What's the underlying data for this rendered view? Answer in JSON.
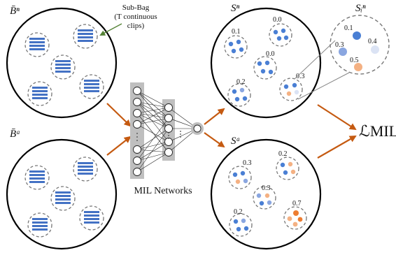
{
  "labels": {
    "bag_normal": "B̄ⁿ",
    "bag_anomaly": "B̄ᵃ",
    "sub_bag_title": "Sub-Bag",
    "sub_bag_desc": "(T continuous",
    "sub_bag_desc2": "clips)",
    "network": "MIL Networks",
    "scores_normal": "Sⁿ",
    "scores_anomaly": "Sᵃ",
    "scores_detail": "Sᵢⁿ",
    "loss": "ℒMIL"
  },
  "score_values": {
    "normal": [
      "0.1",
      "0.0",
      "0.0",
      "0.2",
      "0.3"
    ],
    "anomaly": [
      "0.3",
      "0.2",
      "0.3",
      "0.2",
      "0.7"
    ],
    "detail": [
      "0.1",
      "0.3",
      "0.4",
      "0.5"
    ]
  },
  "colors": {
    "clip_blue": "#4472c4",
    "dot_blue": "#4a7fd4",
    "arrow_orange": "#c55a11",
    "dot_orange": "#f4b183",
    "dot_orange_strong": "#ed7d31",
    "dot_light": "#dbe3f4",
    "callout_green": "#548235"
  }
}
